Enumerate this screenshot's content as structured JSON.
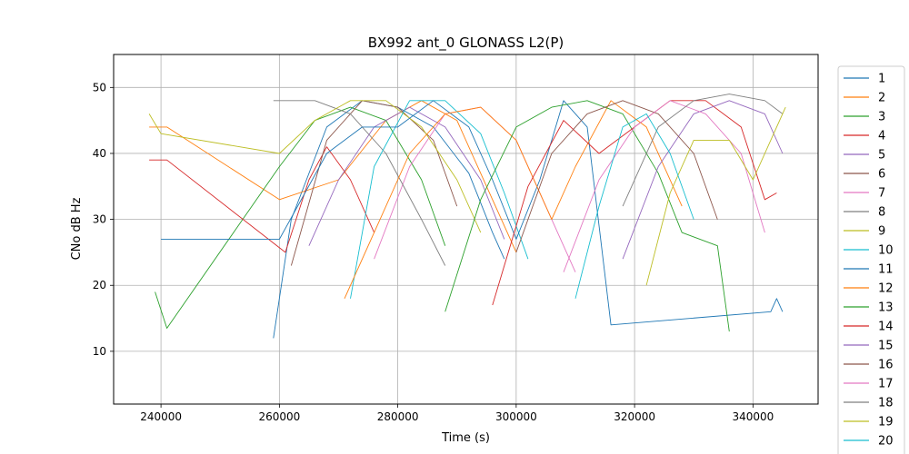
{
  "chart_data": {
    "type": "line",
    "title": "BX992 ant_0 GLONASS L2(P)",
    "xlabel": "Time (s)",
    "ylabel": "CNo dB Hz",
    "xlim": [
      232000,
      351000
    ],
    "ylim": [
      2,
      55
    ],
    "xticks": [
      240000,
      260000,
      280000,
      300000,
      320000,
      340000
    ],
    "yticks": [
      10,
      20,
      30,
      40,
      50
    ],
    "grid": true,
    "legend_position": "right, outside plot (clipped at bottom)",
    "palette": [
      "#1f77b4",
      "#ff7f0e",
      "#2ca02c",
      "#d62728",
      "#9467bd",
      "#8c564b",
      "#e377c2",
      "#7f7f7f",
      "#bcbd22",
      "#17becf"
    ],
    "series": [
      {
        "name": "1",
        "points": [
          [
            259000,
            12
          ],
          [
            262000,
            30
          ],
          [
            268000,
            44
          ],
          [
            274000,
            48
          ],
          [
            280000,
            47
          ],
          [
            286000,
            44
          ],
          [
            292000,
            37
          ],
          [
            296000,
            28
          ],
          [
            298000,
            24
          ]
        ]
      },
      {
        "name": "2",
        "points": [
          [
            238000,
            44
          ],
          [
            241000,
            44
          ],
          [
            260000,
            33
          ],
          [
            270000,
            36
          ],
          [
            278000,
            45
          ],
          [
            284000,
            48
          ],
          [
            290000,
            45
          ],
          [
            296000,
            33
          ],
          [
            300000,
            25
          ]
        ]
      },
      {
        "name": "3",
        "points": [
          [
            239000,
            19
          ],
          [
            241000,
            13.5
          ],
          [
            260000,
            38
          ],
          [
            266000,
            45
          ],
          [
            272000,
            47
          ],
          [
            278000,
            45
          ],
          [
            284000,
            36
          ],
          [
            288000,
            26
          ]
        ]
      },
      {
        "name": "4",
        "points": [
          [
            238000,
            39
          ],
          [
            241000,
            39
          ],
          [
            261000,
            25
          ],
          [
            265000,
            36
          ],
          [
            268000,
            41
          ],
          [
            272000,
            36
          ],
          [
            276000,
            28
          ]
        ]
      },
      {
        "name": "5",
        "points": [
          [
            265000,
            26
          ],
          [
            270000,
            36
          ],
          [
            276000,
            44
          ],
          [
            282000,
            47
          ],
          [
            288000,
            44
          ],
          [
            294000,
            36
          ],
          [
            298000,
            27
          ]
        ]
      },
      {
        "name": "6",
        "points": [
          [
            262000,
            23
          ],
          [
            268000,
            42
          ],
          [
            274000,
            48
          ],
          [
            280000,
            47
          ],
          [
            286000,
            42
          ],
          [
            290000,
            32
          ]
        ]
      },
      {
        "name": "7",
        "points": [
          [
            276000,
            24
          ],
          [
            282000,
            38
          ],
          [
            288000,
            46
          ],
          [
            294000,
            47
          ],
          [
            300000,
            42
          ],
          [
            306000,
            30
          ],
          [
            310000,
            22
          ]
        ]
      },
      {
        "name": "8",
        "points": [
          [
            259000,
            48
          ],
          [
            266000,
            48
          ],
          [
            272000,
            46
          ],
          [
            278000,
            40
          ],
          [
            284000,
            30
          ],
          [
            288000,
            23
          ]
        ]
      },
      {
        "name": "9",
        "points": [
          [
            238000,
            46
          ],
          [
            240000,
            43
          ],
          [
            260000,
            40
          ],
          [
            266000,
            45
          ],
          [
            272000,
            48
          ],
          [
            278000,
            48
          ],
          [
            284000,
            44
          ],
          [
            290000,
            36
          ],
          [
            294000,
            28
          ]
        ]
      },
      {
        "name": "10",
        "points": [
          [
            272000,
            18
          ],
          [
            276000,
            38
          ],
          [
            282000,
            48
          ],
          [
            288000,
            48
          ],
          [
            294000,
            43
          ],
          [
            298000,
            34
          ],
          [
            302000,
            24
          ]
        ]
      },
      {
        "name": "11",
        "points": [
          [
            240000,
            27
          ],
          [
            260000,
            27
          ],
          [
            268000,
            40
          ],
          [
            274000,
            44
          ],
          [
            280000,
            44
          ],
          [
            286000,
            48
          ],
          [
            292000,
            44
          ],
          [
            296000,
            36
          ],
          [
            300000,
            27
          ],
          [
            304000,
            36
          ],
          [
            308000,
            48
          ],
          [
            312000,
            44
          ],
          [
            316000,
            14
          ],
          [
            343000,
            16
          ],
          [
            344000,
            18
          ],
          [
            345000,
            16
          ]
        ]
      },
      {
        "name": "12",
        "points": [
          [
            271000,
            18
          ],
          [
            276000,
            28
          ],
          [
            282000,
            40
          ],
          [
            288000,
            46
          ],
          [
            294000,
            47
          ],
          [
            300000,
            42
          ],
          [
            306000,
            30
          ],
          [
            310000,
            38
          ],
          [
            316000,
            48
          ],
          [
            322000,
            44
          ],
          [
            328000,
            32
          ]
        ]
      },
      {
        "name": "13",
        "points": [
          [
            288000,
            16
          ],
          [
            294000,
            33
          ],
          [
            300000,
            44
          ],
          [
            306000,
            47
          ],
          [
            312000,
            48
          ],
          [
            318000,
            46
          ],
          [
            324000,
            37
          ],
          [
            328000,
            28
          ],
          [
            334000,
            26
          ],
          [
            336000,
            13
          ]
        ]
      },
      {
        "name": "14",
        "points": [
          [
            296000,
            17
          ],
          [
            302000,
            35
          ],
          [
            308000,
            45
          ],
          [
            314000,
            40
          ],
          [
            320000,
            44
          ],
          [
            326000,
            48
          ],
          [
            332000,
            48
          ],
          [
            338000,
            44
          ],
          [
            342000,
            33
          ],
          [
            344000,
            34
          ]
        ]
      },
      {
        "name": "15",
        "points": [
          [
            318000,
            24
          ],
          [
            324000,
            38
          ],
          [
            330000,
            46
          ],
          [
            336000,
            48
          ],
          [
            342000,
            46
          ],
          [
            345000,
            40
          ]
        ]
      },
      {
        "name": "16",
        "points": [
          [
            300000,
            25
          ],
          [
            306000,
            40
          ],
          [
            312000,
            46
          ],
          [
            318000,
            48
          ],
          [
            324000,
            46
          ],
          [
            330000,
            40
          ],
          [
            334000,
            30
          ]
        ]
      },
      {
        "name": "17",
        "points": [
          [
            308000,
            22
          ],
          [
            314000,
            36
          ],
          [
            320000,
            44
          ],
          [
            326000,
            48
          ],
          [
            332000,
            46
          ],
          [
            338000,
            40
          ],
          [
            342000,
            28
          ]
        ]
      },
      {
        "name": "18",
        "points": [
          [
            318000,
            32
          ],
          [
            324000,
            44
          ],
          [
            330000,
            48
          ],
          [
            336000,
            49
          ],
          [
            342000,
            48
          ],
          [
            345000,
            46
          ]
        ]
      },
      {
        "name": "19",
        "points": [
          [
            322000,
            20
          ],
          [
            326000,
            34
          ],
          [
            330000,
            42
          ],
          [
            336000,
            42
          ],
          [
            340000,
            36
          ],
          [
            344000,
            44
          ],
          [
            345500,
            47
          ]
        ]
      },
      {
        "name": "20",
        "points": [
          [
            310000,
            18
          ],
          [
            314000,
            32
          ],
          [
            318000,
            44
          ],
          [
            322000,
            46
          ],
          [
            326000,
            40
          ],
          [
            330000,
            30
          ]
        ]
      }
    ]
  }
}
